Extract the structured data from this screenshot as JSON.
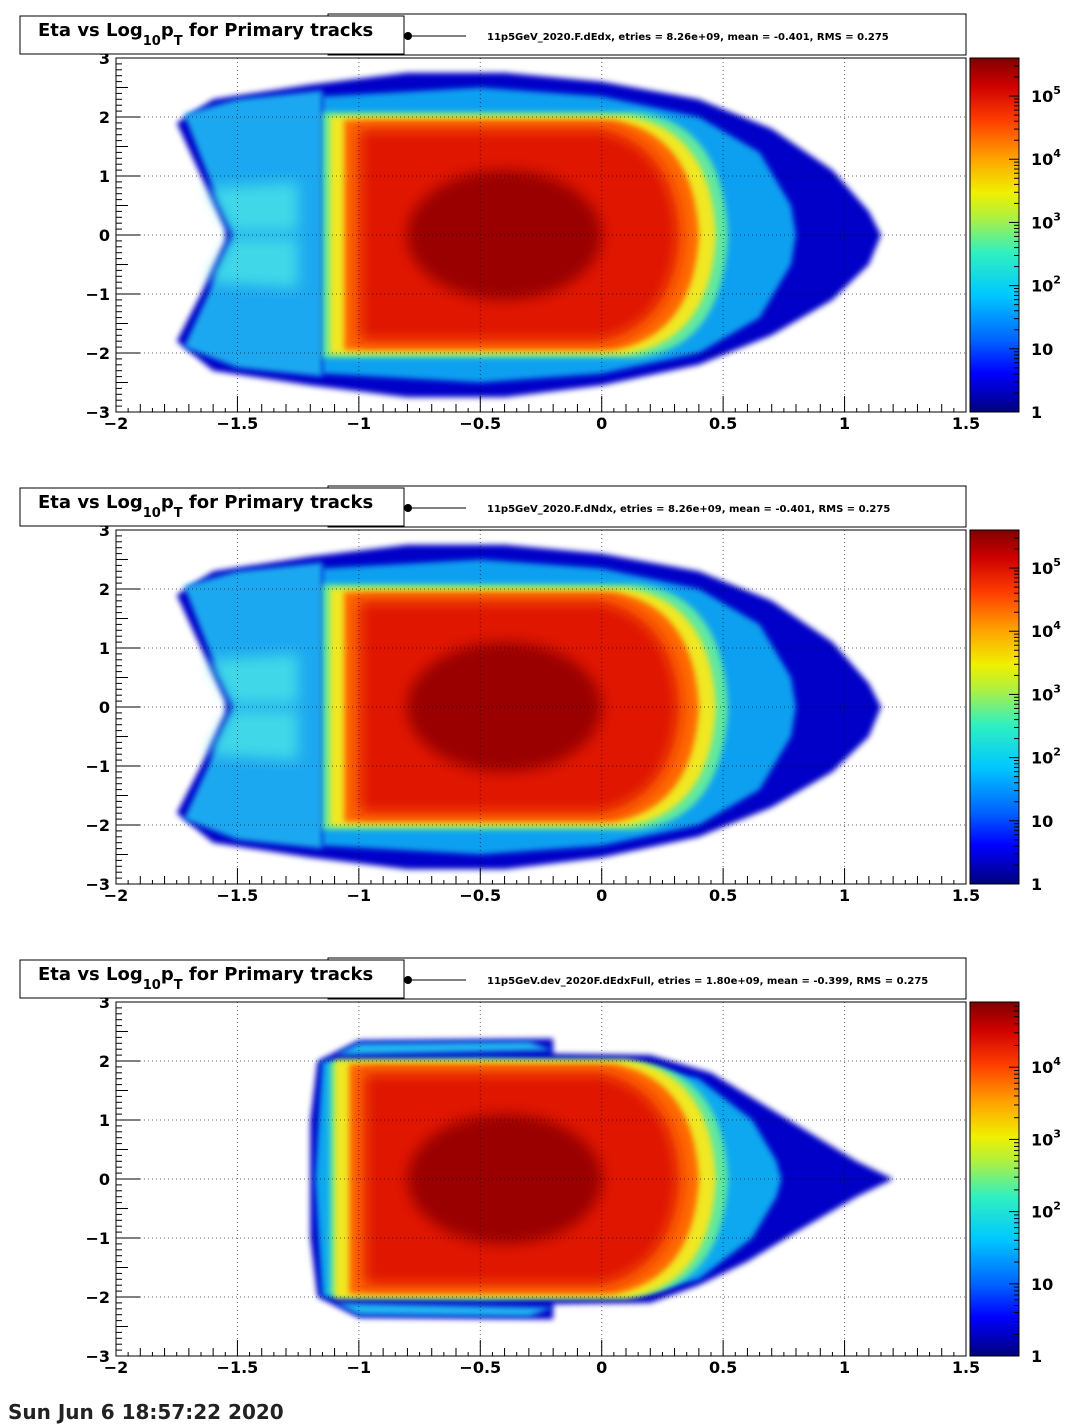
{
  "chart_data": [
    {
      "type": "heatmap",
      "title": "Eta vs Log10pT for Primary tracks",
      "title_parts": {
        "pre": "Eta vs Log",
        "sub": "10",
        "mid": "p",
        "sub2": "T",
        "post": " for Primary tracks"
      },
      "legend": "11p5GeV_2020.F.dEdx, etries =   8.26e+09, mean =  -0.401, RMS =   0.275",
      "xlim": [
        -2,
        1.5
      ],
      "ylim": [
        -3,
        3
      ],
      "x_ticks": [
        "−2",
        "−1.5",
        "−1",
        "−0.5",
        "0",
        "0.5",
        "1",
        "1.5"
      ],
      "y_ticks": [
        "−3",
        "−2",
        "−1",
        "0",
        "1",
        "2",
        "3"
      ],
      "colorbar": {
        "scale": "log",
        "range": [
          1,
          400000
        ],
        "labels": [
          "1",
          "10",
          "10^2",
          "10^3",
          "10^4",
          "10^5"
        ]
      },
      "entries": 8260000000.0,
      "mean": -0.401,
      "rms": 0.275,
      "shape": "full"
    },
    {
      "type": "heatmap",
      "title": "Eta vs Log10pT for Primary tracks",
      "title_parts": {
        "pre": "Eta vs Log",
        "sub": "10",
        "mid": "p",
        "sub2": "T",
        "post": " for Primary tracks"
      },
      "legend": "11p5GeV_2020.F.dNdx, etries =  8.26e+09, mean =  -0.401, RMS =   0.275",
      "xlim": [
        -2,
        1.5
      ],
      "ylim": [
        -3,
        3
      ],
      "x_ticks": [
        "−2",
        "−1.5",
        "−1",
        "−0.5",
        "0",
        "0.5",
        "1",
        "1.5"
      ],
      "y_ticks": [
        "−3",
        "−2",
        "−1",
        "0",
        "1",
        "2",
        "3"
      ],
      "colorbar": {
        "scale": "log",
        "range": [
          1,
          400000
        ],
        "labels": [
          "1",
          "10",
          "10^2",
          "10^3",
          "10^4",
          "10^5"
        ]
      },
      "entries": 8260000000.0,
      "mean": -0.401,
      "rms": 0.275,
      "shape": "full"
    },
    {
      "type": "heatmap",
      "title": "Eta vs Log10pT for Primary tracks",
      "title_parts": {
        "pre": "Eta vs Log",
        "sub": "10",
        "mid": "p",
        "sub2": "T",
        "post": " for Primary tracks"
      },
      "legend": "11p5GeV.dev_2020F.dEdxFull, etries =   1.80e+09, mean =  -0.399, RMS =   0.275",
      "xlim": [
        -2,
        1.5
      ],
      "ylim": [
        -3,
        3
      ],
      "x_ticks": [
        "−2",
        "−1.5",
        "−1",
        "−0.5",
        "0",
        "0.5",
        "1",
        "1.5"
      ],
      "y_ticks": [
        "−3",
        "−2",
        "−1",
        "0",
        "1",
        "2",
        "3"
      ],
      "colorbar": {
        "scale": "log",
        "range": [
          1,
          80000
        ],
        "labels": [
          "1",
          "10",
          "10^2",
          "10^3",
          "10^4"
        ]
      },
      "entries": 1800000000.0,
      "mean": -0.399,
      "rms": 0.275,
      "shape": "restricted"
    }
  ],
  "footer": "Sun Jun  6 18:57:22 2020"
}
